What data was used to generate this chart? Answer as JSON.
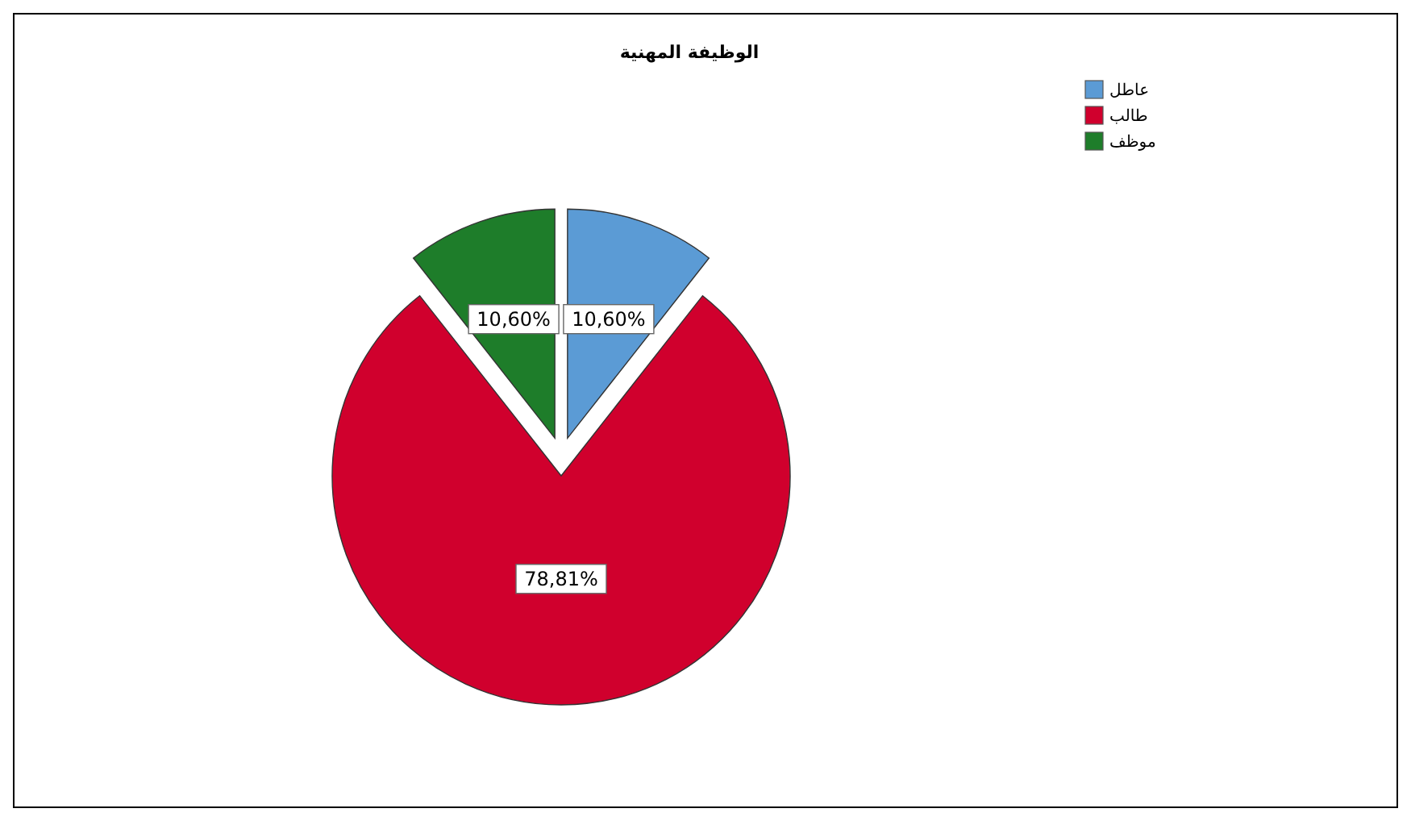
{
  "chart_data": {
    "type": "pie",
    "title": "الوظيفة المهنية",
    "categories": [
      "عاطل",
      "طالب",
      "موظف"
    ],
    "values": [
      10.6,
      78.81,
      10.6
    ],
    "colors": [
      "#5b9bd5",
      "#d0002d",
      "#1e7d2a"
    ],
    "value_labels": [
      "10,60%",
      "78,81%",
      "10,60%"
    ],
    "legend": "top right"
  }
}
